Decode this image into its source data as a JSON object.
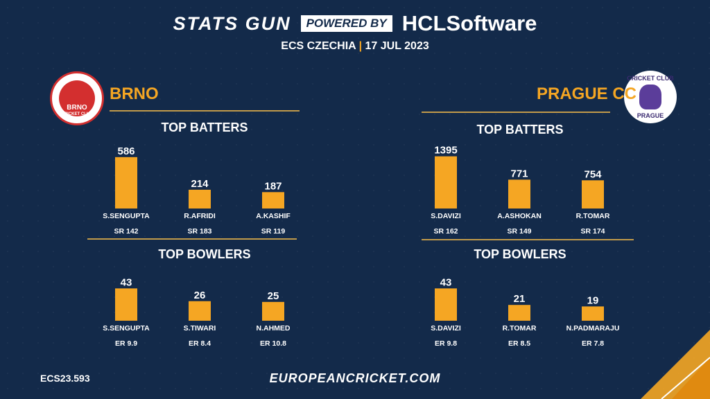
{
  "header": {
    "brand": "STATS GUN",
    "powered": "POWERED BY",
    "sponsor": "HCLSoftware",
    "event": "ECS CZECHIA",
    "separator": "|",
    "date": "17 JUL 2023"
  },
  "logos": {
    "brno_top": "BRNO",
    "brno_bottom": "CRICKET CLUB",
    "prague_top": "CRICKET CLUB",
    "prague_bottom": "PRAGUE"
  },
  "teams": [
    {
      "name": "BRNO"
    },
    {
      "name": "PRAGUE CC"
    }
  ],
  "colors": {
    "background": "#132a4a",
    "bar": "#f5a623",
    "accent": "#f5a623",
    "rule": "#c29b4a"
  },
  "chart_data": [
    {
      "type": "bar",
      "team": "BRNO",
      "title": "TOP BATTERS",
      "categories": [
        "S.SENGUPTA",
        "R.AFRIDI",
        "A.KASHIF"
      ],
      "values": [
        586,
        214,
        187
      ],
      "sublabels": [
        "SR 142",
        "SR 183",
        "SR 119"
      ],
      "ylim": [
        0,
        640
      ]
    },
    {
      "type": "bar",
      "team": "BRNO",
      "title": "TOP BOWLERS",
      "categories": [
        "S.SENGUPTA",
        "S.TIWARI",
        "N.AHMED"
      ],
      "values": [
        43,
        26,
        25
      ],
      "sublabels": [
        "ER 9.9",
        "ER 8.4",
        "ER 10.8"
      ],
      "ylim": [
        0,
        47
      ]
    },
    {
      "type": "bar",
      "team": "PRAGUE CC",
      "title": "TOP BATTERS",
      "categories": [
        "S.DAVIZI",
        "A.ASHOKAN",
        "R.TOMAR"
      ],
      "values": [
        1395,
        771,
        754
      ],
      "sublabels": [
        "SR 162",
        "SR 149",
        "SR 174"
      ],
      "ylim": [
        0,
        1500
      ]
    },
    {
      "type": "bar",
      "team": "PRAGUE CC",
      "title": "TOP BOWLERS",
      "categories": [
        "S.DAVIZI",
        "R.TOMAR",
        "N.PADMARAJU"
      ],
      "values": [
        43,
        21,
        19
      ],
      "sublabels": [
        "ER 9.8",
        "ER 8.5",
        "ER 7.8"
      ],
      "ylim": [
        0,
        47
      ]
    }
  ],
  "footer": {
    "code": "ECS23.593",
    "website": "EUROPEANCRICKET.COM"
  }
}
